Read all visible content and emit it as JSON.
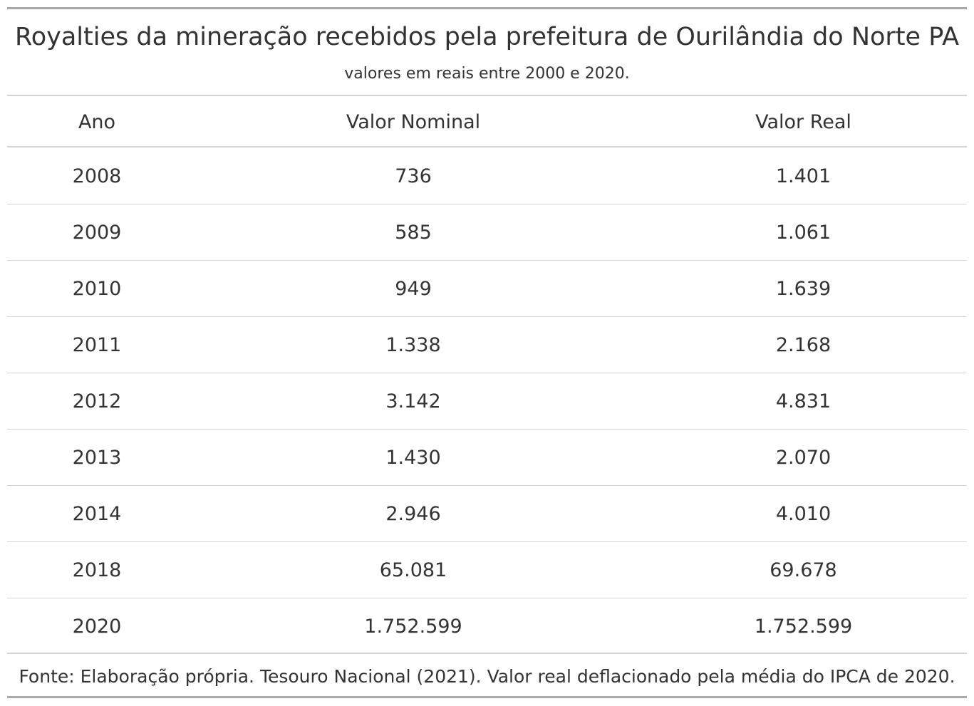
{
  "chart_data": {
    "type": "table",
    "title": "Royalties da mineração recebidos pela prefeitura de Ourilândia do Norte PA",
    "subtitle": "valores em reais entre 2000 e 2020.",
    "columns": [
      "Ano",
      "Valor Nominal",
      "Valor Real"
    ],
    "rows": [
      [
        "2008",
        "736",
        "1.401"
      ],
      [
        "2009",
        "585",
        "1.061"
      ],
      [
        "2010",
        "949",
        "1.639"
      ],
      [
        "2011",
        "1.338",
        "2.168"
      ],
      [
        "2012",
        "3.142",
        "4.831"
      ],
      [
        "2013",
        "1.430",
        "2.070"
      ],
      [
        "2014",
        "2.946",
        "4.010"
      ],
      [
        "2018",
        "65.081",
        "69.678"
      ],
      [
        "2020",
        "1.752.599",
        "1.752.599"
      ]
    ],
    "x": [
      2008,
      2009,
      2010,
      2011,
      2012,
      2013,
      2014,
      2018,
      2020
    ],
    "series": [
      {
        "name": "Valor Nominal",
        "values": [
          736,
          585,
          949,
          1338,
          3142,
          1430,
          2946,
          65081,
          1752599
        ]
      },
      {
        "name": "Valor Real",
        "values": [
          1401,
          1061,
          1639,
          2168,
          4831,
          2070,
          4010,
          69678,
          1752599
        ]
      }
    ],
    "source_note": "Fonte: Elaboração própria. Tesouro Nacional (2021). Valor real deflacionado pela média do IPCA de 2020."
  },
  "colors": {
    "text": "#333333",
    "rule_strong": "#a8a8a8",
    "rule_light": "#d3d3d3",
    "background": "#ffffff"
  }
}
